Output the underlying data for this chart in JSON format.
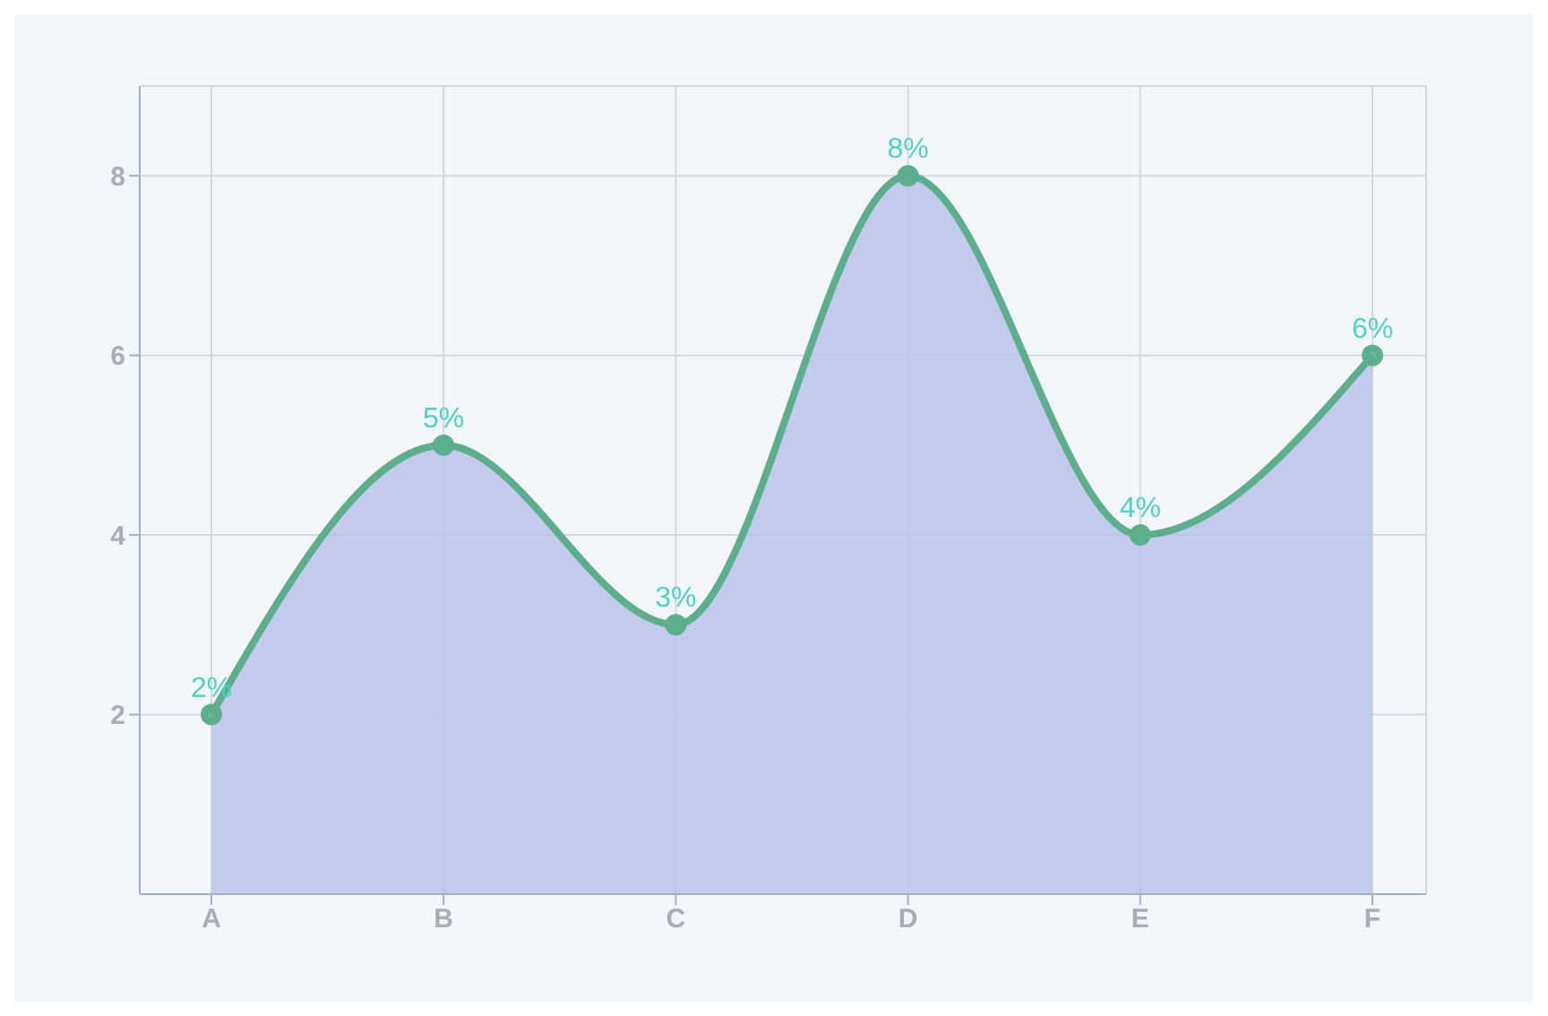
{
  "chart_data": {
    "type": "area",
    "categories": [
      "A",
      "B",
      "C",
      "D",
      "E",
      "F"
    ],
    "series": [
      {
        "color": "#5cae8c",
        "values": [
          2,
          5,
          3,
          8,
          4,
          6
        ],
        "value_labels": [
          "2%",
          "5%",
          "3%",
          "8%",
          "4%",
          "6%"
        ]
      }
    ],
    "ylim": [
      0,
      9
    ],
    "yticks": [
      2,
      4,
      6,
      8
    ],
    "grid": true,
    "marker": "circle"
  }
}
